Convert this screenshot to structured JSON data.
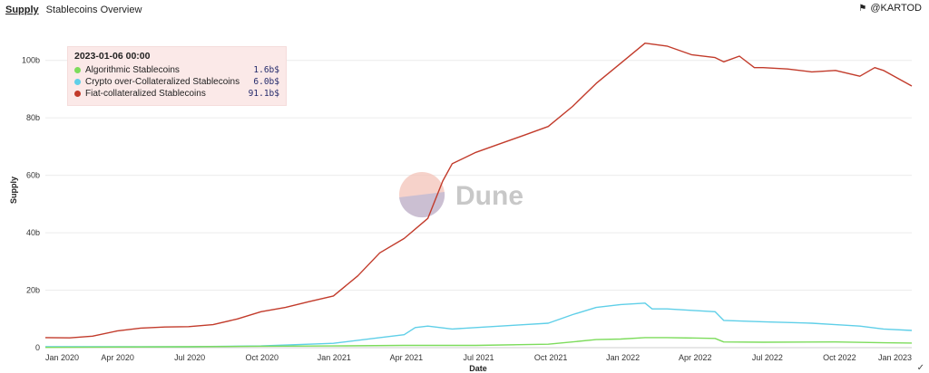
{
  "header": {
    "section": "Supply",
    "title": "Stablecoins Overview"
  },
  "owner": {
    "icon": "flag-icon",
    "handle": "@KARTOD"
  },
  "watermark": {
    "text": "Dune"
  },
  "tooltip": {
    "date": "2023-01-06 00:00",
    "rows": [
      {
        "name": "Algorithmic Stablecoins",
        "value": "1.6b$",
        "color": "#7ddc5c"
      },
      {
        "name": "Crypto over-Collateralized Stablecoins",
        "value": "6.0b$",
        "color": "#5fcfe8"
      },
      {
        "name": "Fiat-collateralized Stablecoins",
        "value": "91.1b$",
        "color": "#c23b2b"
      }
    ]
  },
  "chart_data": {
    "type": "line",
    "title": "",
    "xlabel": "Date",
    "ylabel": "Supply",
    "xlim": [
      "2020-01-01",
      "2023-01-06"
    ],
    "ylim": [
      0,
      110
    ],
    "x_ticks": [
      "Jan 2020",
      "Apr 2020",
      "Jul 2020",
      "Oct 2020",
      "Jan 2021",
      "Apr 2021",
      "Jul 2021",
      "Oct 2021",
      "Jan 2022",
      "Apr 2022",
      "Jul 2022",
      "Oct 2022",
      "Jan 2023"
    ],
    "y_ticks": [
      "0",
      "20b",
      "40b",
      "60b",
      "80b",
      "100b"
    ],
    "y_tick_values": [
      0,
      20,
      40,
      60,
      80,
      100
    ],
    "grid": true,
    "series": [
      {
        "name": "Fiat-collateralized Stablecoins",
        "color": "#c23b2b",
        "points": [
          [
            "2020-01-01",
            3.5
          ],
          [
            "2020-02-01",
            3.4
          ],
          [
            "2020-03-01",
            4.0
          ],
          [
            "2020-04-01",
            5.8
          ],
          [
            "2020-05-01",
            6.8
          ],
          [
            "2020-06-01",
            7.2
          ],
          [
            "2020-07-01",
            7.3
          ],
          [
            "2020-08-01",
            8.0
          ],
          [
            "2020-09-01",
            10.0
          ],
          [
            "2020-10-01",
            12.5
          ],
          [
            "2020-11-01",
            14.0
          ],
          [
            "2020-12-01",
            16.0
          ],
          [
            "2021-01-01",
            18.0
          ],
          [
            "2021-02-01",
            25.0
          ],
          [
            "2021-03-01",
            33.0
          ],
          [
            "2021-04-01",
            38.0
          ],
          [
            "2021-05-01",
            45.0
          ],
          [
            "2021-05-20",
            58.0
          ],
          [
            "2021-06-01",
            64.0
          ],
          [
            "2021-07-01",
            68.0
          ],
          [
            "2021-08-01",
            71.0
          ],
          [
            "2021-09-01",
            74.0
          ],
          [
            "2021-10-01",
            77.0
          ],
          [
            "2021-11-01",
            84.0
          ],
          [
            "2021-12-01",
            92.0
          ],
          [
            "2022-01-01",
            99.0
          ],
          [
            "2022-02-01",
            106.0
          ],
          [
            "2022-03-01",
            105.0
          ],
          [
            "2022-04-01",
            102.0
          ],
          [
            "2022-05-01",
            101.0
          ],
          [
            "2022-05-12",
            99.5
          ],
          [
            "2022-06-01",
            101.5
          ],
          [
            "2022-06-20",
            97.5
          ],
          [
            "2022-07-01",
            97.5
          ],
          [
            "2022-08-01",
            97.0
          ],
          [
            "2022-09-01",
            96.0
          ],
          [
            "2022-10-01",
            96.5
          ],
          [
            "2022-11-01",
            94.5
          ],
          [
            "2022-11-20",
            97.5
          ],
          [
            "2022-12-01",
            96.5
          ],
          [
            "2023-01-06",
            91.1
          ]
        ]
      },
      {
        "name": "Crypto over-Collateralized Stablecoins",
        "color": "#5fcfe8",
        "points": [
          [
            "2020-01-01",
            0.3
          ],
          [
            "2020-04-01",
            0.3
          ],
          [
            "2020-07-01",
            0.3
          ],
          [
            "2020-10-01",
            0.6
          ],
          [
            "2021-01-01",
            1.5
          ],
          [
            "2021-03-01",
            3.5
          ],
          [
            "2021-04-01",
            4.5
          ],
          [
            "2021-04-15",
            7.0
          ],
          [
            "2021-05-01",
            7.5
          ],
          [
            "2021-06-01",
            6.5
          ],
          [
            "2021-07-01",
            7.0
          ],
          [
            "2021-08-01",
            7.5
          ],
          [
            "2021-09-01",
            8.0
          ],
          [
            "2021-10-01",
            8.5
          ],
          [
            "2021-11-01",
            11.5
          ],
          [
            "2021-12-01",
            14.0
          ],
          [
            "2022-01-01",
            15.0
          ],
          [
            "2022-02-01",
            15.5
          ],
          [
            "2022-02-10",
            13.5
          ],
          [
            "2022-03-01",
            13.5
          ],
          [
            "2022-04-01",
            13.0
          ],
          [
            "2022-05-01",
            12.5
          ],
          [
            "2022-05-12",
            9.5
          ],
          [
            "2022-07-01",
            9.0
          ],
          [
            "2022-09-01",
            8.5
          ],
          [
            "2022-10-01",
            8.0
          ],
          [
            "2022-11-01",
            7.5
          ],
          [
            "2022-12-01",
            6.5
          ],
          [
            "2023-01-06",
            6.0
          ]
        ]
      },
      {
        "name": "Algorithmic Stablecoins",
        "color": "#7ddc5c",
        "points": [
          [
            "2020-01-01",
            0.1
          ],
          [
            "2020-07-01",
            0.3
          ],
          [
            "2020-10-01",
            0.5
          ],
          [
            "2021-01-01",
            0.6
          ],
          [
            "2021-04-01",
            0.8
          ],
          [
            "2021-07-01",
            0.8
          ],
          [
            "2021-10-01",
            1.2
          ],
          [
            "2021-12-01",
            2.8
          ],
          [
            "2022-01-01",
            3.0
          ],
          [
            "2022-02-01",
            3.5
          ],
          [
            "2022-03-01",
            3.5
          ],
          [
            "2022-05-01",
            3.2
          ],
          [
            "2022-05-12",
            2.0
          ],
          [
            "2022-07-01",
            1.9
          ],
          [
            "2022-10-01",
            2.0
          ],
          [
            "2022-12-01",
            1.7
          ],
          [
            "2023-01-06",
            1.6
          ]
        ]
      }
    ]
  }
}
